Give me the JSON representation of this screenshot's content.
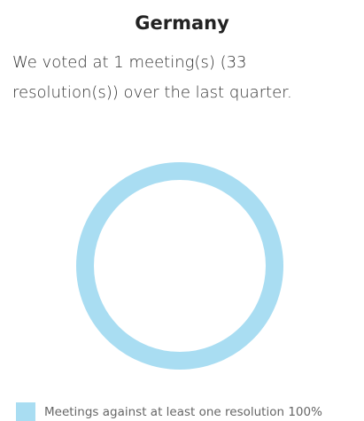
{
  "chart_data": {
    "type": "pie",
    "donut": true,
    "title": "Germany",
    "subtitle": "We voted at 1 meeting(s) (33 resolution(s)) over the last quarter.",
    "categories": [
      "Meetings against at least one resolution"
    ],
    "values": [
      100
    ],
    "value_labels": [
      "100%"
    ],
    "colors": [
      "#a9ddf2"
    ]
  }
}
